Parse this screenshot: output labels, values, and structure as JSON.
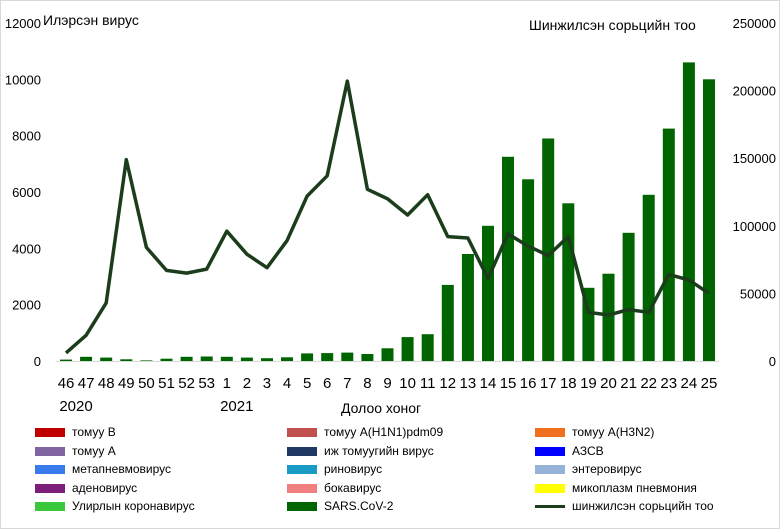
{
  "chart_data": {
    "type": "bar+line",
    "categories": [
      "46",
      "47",
      "48",
      "49",
      "50",
      "51",
      "52",
      "53",
      "1",
      "2",
      "3",
      "4",
      "5",
      "6",
      "7",
      "8",
      "9",
      "10",
      "11",
      "12",
      "13",
      "14",
      "15",
      "16",
      "17",
      "18",
      "19",
      "20",
      "21",
      "22",
      "23",
      "24",
      "25"
    ],
    "year_labels": [
      {
        "text": "2020",
        "at": "46"
      },
      {
        "text": "2021",
        "at": "1"
      }
    ],
    "xlabel": "Долоо хоног",
    "ylabel_left": "Илэрсэн вирус",
    "ylabel_right": "Шинжилсэн сорьцийн тоо",
    "ylim_left": [
      0,
      12000
    ],
    "ylim_right": [
      0,
      250000
    ],
    "left_ticks": [
      "0",
      "2000",
      "4000",
      "6000",
      "8000",
      "10000",
      "12000"
    ],
    "right_ticks": [
      "0",
      "50000",
      "100000",
      "150000",
      "200000",
      "250000"
    ],
    "series": [
      {
        "name": "SARS.CoV-2",
        "type": "bar",
        "axis": "left",
        "color": "#006400",
        "values": [
          50,
          150,
          120,
          60,
          20,
          80,
          150,
          160,
          150,
          120,
          100,
          130,
          270,
          280,
          300,
          250,
          450,
          850,
          950,
          2700,
          3800,
          4800,
          7250,
          6450,
          7900,
          5600,
          2600,
          3100,
          4550,
          5900,
          8250,
          10600,
          10000
        ]
      },
      {
        "name": "шинжилсэн сорьцийн тоо",
        "type": "line",
        "axis": "right",
        "color": "#1b3d1b",
        "values": [
          6000,
          19000,
          43000,
          149000,
          84000,
          67000,
          65000,
          68000,
          96000,
          79000,
          69000,
          89000,
          122000,
          137000,
          207000,
          127000,
          120000,
          108000,
          123000,
          92000,
          91000,
          61000,
          94000,
          85000,
          78000,
          92000,
          36000,
          34000,
          38000,
          36000,
          64000,
          60000,
          50000
        ]
      }
    ],
    "legend": [
      {
        "label": "томуу B",
        "color": "#c00000",
        "kind": "bar"
      },
      {
        "label": "томуу A(H1N1)pdm09",
        "color": "#c0504d",
        "kind": "bar"
      },
      {
        "label": "томуу A(H3N2)",
        "color": "#f07020",
        "kind": "bar"
      },
      {
        "label": "томуу A",
        "color": "#8064a2",
        "kind": "bar"
      },
      {
        "label": "иж томуугийн вирус",
        "color": "#1f3864",
        "kind": "bar"
      },
      {
        "label": "АЗСВ",
        "color": "#0000ff",
        "kind": "bar"
      },
      {
        "label": "метапневмовирус",
        "color": "#3a7bec",
        "kind": "bar"
      },
      {
        "label": "риновирус",
        "color": "#1a9bc6",
        "kind": "bar"
      },
      {
        "label": "энтеровирус",
        "color": "#95b3d7",
        "kind": "bar"
      },
      {
        "label": "аденовирус",
        "color": "#7b1f7b",
        "kind": "bar"
      },
      {
        "label": "бокавирус",
        "color": "#f08080",
        "kind": "bar"
      },
      {
        "label": "микоплазм пневмония",
        "color": "#ffff00",
        "kind": "bar"
      },
      {
        "label": "Улирлын коронавирус",
        "color": "#3cc83c",
        "kind": "bar"
      },
      {
        "label": "SARS.CoV-2",
        "color": "#006400",
        "kind": "bar"
      },
      {
        "label": "шинжилсэн сорьцийн тоо",
        "color": "#1b3d1b",
        "kind": "line"
      }
    ]
  }
}
